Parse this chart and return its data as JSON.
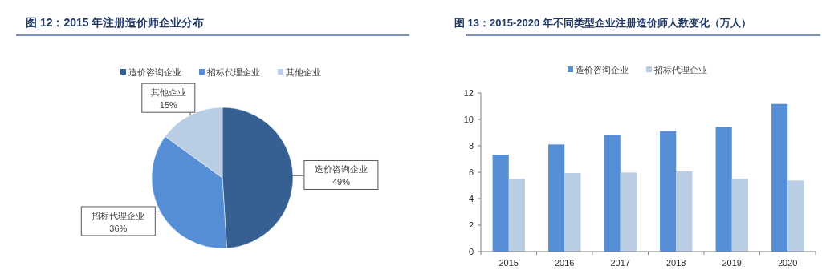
{
  "chart_data": [
    {
      "type": "pie",
      "title": "图 12：2015 年注册造价师企业分布",
      "categories": [
        "造价咨询企业",
        "招标代理企业",
        "其他企业"
      ],
      "values": [
        49,
        36,
        15
      ],
      "colors": [
        "#376092",
        "#558ed5",
        "#b9cde5"
      ],
      "value_labels": [
        "49%",
        "36%",
        "15%"
      ],
      "legend": "top"
    },
    {
      "type": "bar",
      "title": "图 13：2015-2020 年不同类型企业注册造价师人数变化（万人）",
      "categories": [
        "2015",
        "2016",
        "2017",
        "2018",
        "2019",
        "2020"
      ],
      "series": [
        {
          "name": "造价咨询企业",
          "color": "#558ed5",
          "values": [
            7.33,
            8.1,
            8.83,
            9.11,
            9.43,
            11.17
          ]
        },
        {
          "name": "招标代理企业",
          "color": "#b9cde5",
          "values": [
            5.49,
            5.94,
            5.98,
            6.06,
            5.52,
            5.37
          ]
        }
      ],
      "ylim": [
        0,
        12
      ],
      "yticks": [
        0,
        2,
        4,
        6,
        8,
        10,
        12
      ],
      "grid": false,
      "legend": "top"
    }
  ]
}
